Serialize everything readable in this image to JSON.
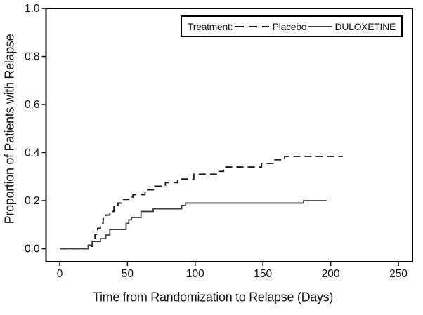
{
  "chart_data": {
    "type": "line",
    "subtype": "kaplan-meier-step",
    "title": "",
    "xlabel": "Time from Randomization to Relapse (Days)",
    "ylabel": "Proportion of Patients with Relapse",
    "xlim": [
      0,
      250
    ],
    "ylim": [
      0.0,
      1.0
    ],
    "x_ticks": [
      "0",
      "50",
      "100",
      "150",
      "200",
      "250"
    ],
    "y_ticks": [
      "0.0",
      "0.2",
      "0.4",
      "0.6",
      "0.8",
      "1.0"
    ],
    "grid": false,
    "axis_color": "#000000",
    "legend": {
      "title": "Treatment:",
      "position": "top-right",
      "entries": [
        {
          "label": "Placebo",
          "line_style": "dashed"
        },
        {
          "label": "DULOXETINE",
          "line_style": "solid"
        }
      ]
    },
    "series": [
      {
        "name": "Placebo",
        "line_style": "dashed",
        "color": "#1a1a1a",
        "points": [
          [
            0,
            0.0
          ],
          [
            21,
            0.01
          ],
          [
            24,
            0.035
          ],
          [
            26,
            0.06
          ],
          [
            28,
            0.085
          ],
          [
            30,
            0.105
          ],
          [
            32,
            0.125
          ],
          [
            34,
            0.14
          ],
          [
            37,
            0.155
          ],
          [
            40,
            0.175
          ],
          [
            43,
            0.19
          ],
          [
            47,
            0.205
          ],
          [
            51,
            0.215
          ],
          [
            54,
            0.225
          ],
          [
            63,
            0.245
          ],
          [
            70,
            0.26
          ],
          [
            78,
            0.275
          ],
          [
            87,
            0.29
          ],
          [
            99,
            0.31
          ],
          [
            117,
            0.322
          ],
          [
            121,
            0.34
          ],
          [
            149,
            0.355
          ],
          [
            158,
            0.37
          ],
          [
            166,
            0.384
          ],
          [
            209,
            0.384
          ]
        ]
      },
      {
        "name": "DULOXETINE",
        "line_style": "solid",
        "color": "#3d3d3d",
        "points": [
          [
            0,
            0.0
          ],
          [
            21,
            0.015
          ],
          [
            24,
            0.03
          ],
          [
            30,
            0.042
          ],
          [
            34,
            0.057
          ],
          [
            37,
            0.08
          ],
          [
            49,
            0.105
          ],
          [
            51,
            0.12
          ],
          [
            53,
            0.13
          ],
          [
            60,
            0.155
          ],
          [
            69,
            0.166
          ],
          [
            90,
            0.18
          ],
          [
            93,
            0.19
          ],
          [
            180,
            0.2
          ],
          [
            197,
            0.2
          ]
        ]
      }
    ]
  }
}
